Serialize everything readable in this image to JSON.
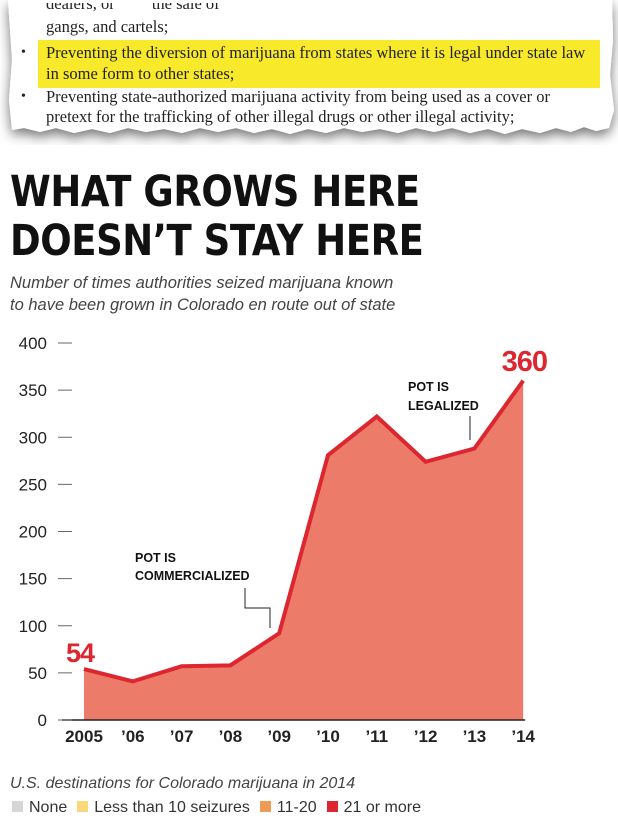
{
  "clipping": {
    "lines": [
      "gangs, and cartels;",
      "Preventing the diversion of marijuana from states where it is legal under state law",
      "in some form to other states;",
      "Preventing state-authorized marijuana activity from being used as a cover or",
      "pretext for the trafficking of other illegal drugs or other illegal activity;"
    ],
    "bullet": "•",
    "highlight_color": "#f8ea2a"
  },
  "headline": {
    "line1": "WHAT GROWS HERE",
    "line2": "DOESN’T STAY HERE"
  },
  "subtitle": {
    "line1": "Number of times authorities seized marijuana known",
    "line2": "to have been grown in Colorado en route out of state"
  },
  "chart_data": {
    "type": "area",
    "x": [
      "2005",
      "’06",
      "’07",
      "’08",
      "’09",
      "’10",
      "’11",
      "’12",
      "’13",
      "’14"
    ],
    "values": [
      54,
      41,
      57,
      58,
      92,
      281,
      322,
      274,
      288,
      360
    ],
    "ylim": [
      0,
      400
    ],
    "yticks": [
      0,
      50,
      100,
      150,
      200,
      250,
      300,
      350,
      400
    ],
    "grid": false,
    "fill_color": "#ec7b6a",
    "line_color": "#dc2630",
    "value_labels": {
      "first": "54",
      "last": "360"
    },
    "annotations": [
      {
        "text": [
          "POT IS",
          "COMMERCIALIZED"
        ],
        "year": "’09"
      },
      {
        "text": [
          "POT IS",
          "LEGALIZED"
        ],
        "year": "’13"
      }
    ]
  },
  "legend": {
    "title": "U.S. destinations for Colorado marijuana in 2014",
    "items": [
      {
        "label": "None",
        "color": "#d6d6d6"
      },
      {
        "label": "Less than 10 seizures",
        "color": "#f9d77a"
      },
      {
        "label": "11-20",
        "color": "#ef9a55"
      },
      {
        "label": "21 or more",
        "color": "#dc2630"
      }
    ]
  }
}
